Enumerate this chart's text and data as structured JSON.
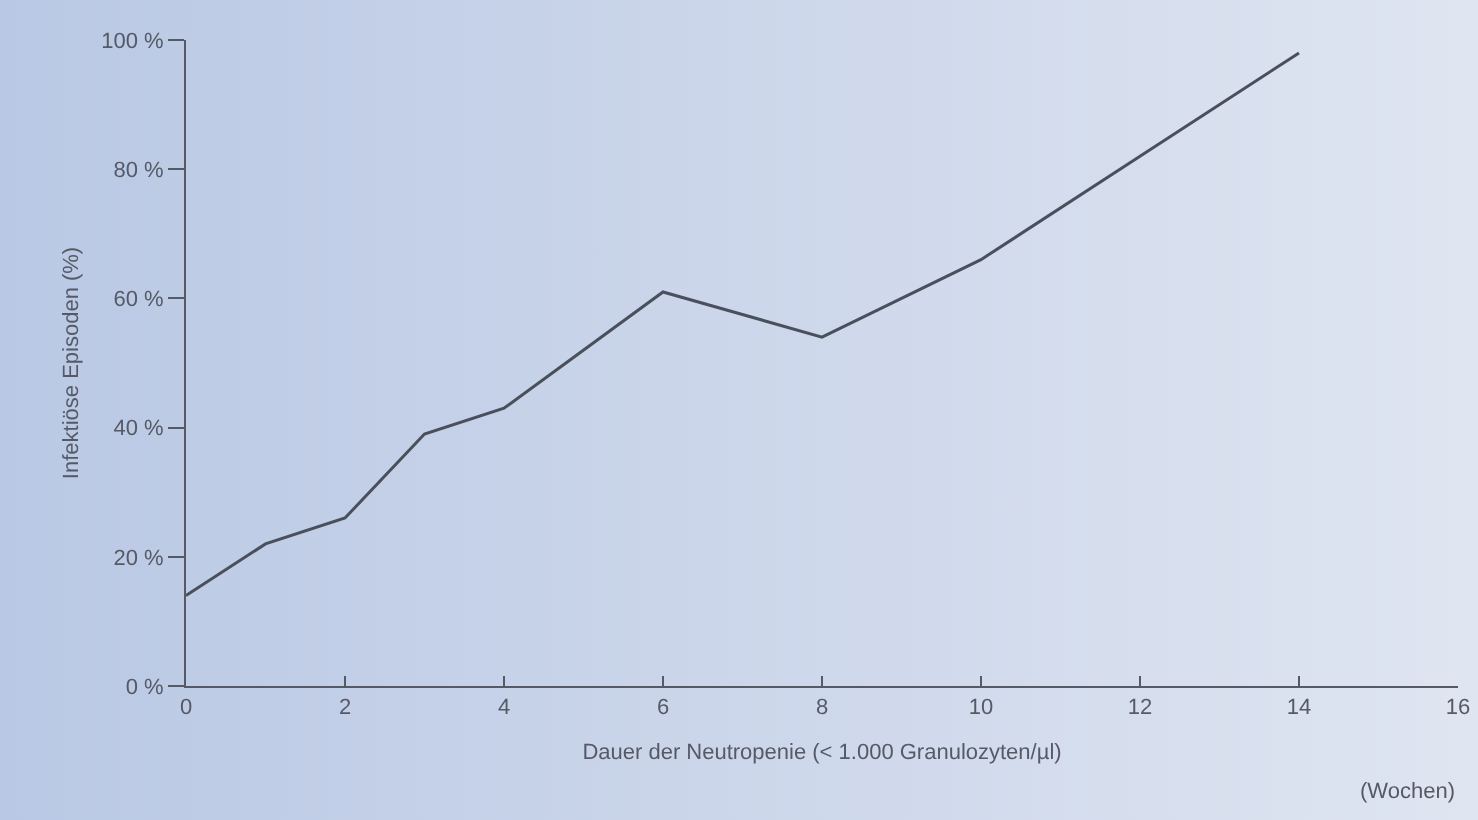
{
  "chart_data": {
    "type": "line",
    "x": [
      0,
      1,
      2,
      3,
      4,
      6,
      8,
      10,
      12,
      14
    ],
    "series": [
      {
        "color": "#4a4f5c",
        "values": [
          14,
          22,
          26,
          39,
          43,
          61,
          54,
          66,
          82,
          98
        ]
      }
    ],
    "xlabel": "Dauer der Neutropenie (< 1.000 Granulozyten/µl)",
    "ylabel": "Infektiöse Episoden (%)",
    "annotations": [
      "(Wochen)"
    ],
    "xlim": [
      0,
      16
    ],
    "xticks": [
      0,
      2,
      4,
      6,
      8,
      10,
      12,
      14,
      16
    ],
    "ylim": [
      0,
      100
    ],
    "yticks": [
      {
        "value": 0,
        "label": "0 %"
      },
      {
        "value": 20,
        "label": "20 %"
      },
      {
        "value": 40,
        "label": "40 %"
      },
      {
        "value": 60,
        "label": "60 %"
      },
      {
        "value": 80,
        "label": "80 %"
      },
      {
        "value": 100,
        "label": "100 %"
      }
    ],
    "grid": false,
    "legend": false,
    "marker": "none",
    "line_style": "solid"
  }
}
